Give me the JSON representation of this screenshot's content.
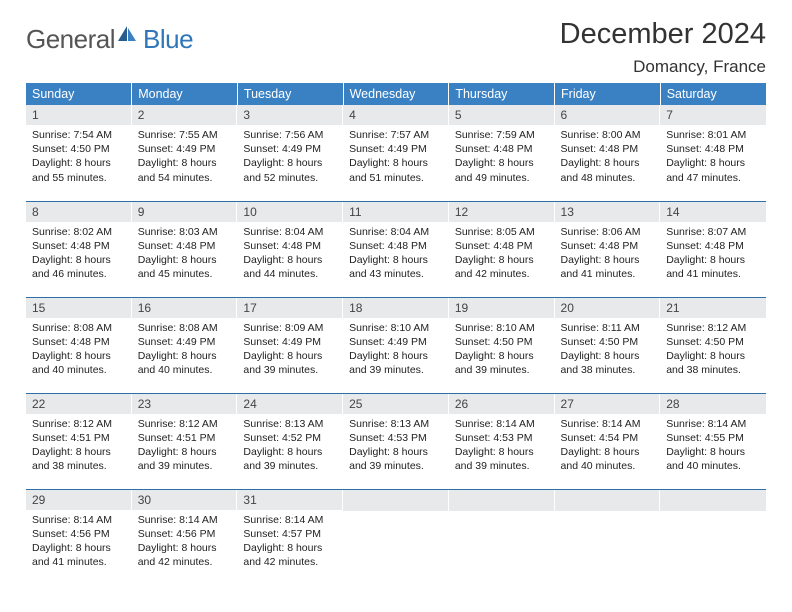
{
  "logo": {
    "text_general": "General",
    "text_blue": "Blue",
    "icon_color": "#2f77b8"
  },
  "header": {
    "title": "December 2024",
    "location": "Domancy, France"
  },
  "colors": {
    "header_bg": "#3a81c4",
    "header_text": "#ffffff",
    "daynum_bg": "#e7e9eb",
    "row_divider": "#2f6fa8",
    "body_text": "#222222"
  },
  "typography": {
    "title_size": 29,
    "subtitle_size": 17,
    "th_size": 12.5,
    "daynum_size": 12,
    "body_size": 10.5
  },
  "weekdays": [
    "Sunday",
    "Monday",
    "Tuesday",
    "Wednesday",
    "Thursday",
    "Friday",
    "Saturday"
  ],
  "weeks": [
    [
      {
        "n": "1",
        "sunrise": "7:54 AM",
        "sunset": "4:50 PM",
        "dl": "8 hours and 55 minutes."
      },
      {
        "n": "2",
        "sunrise": "7:55 AM",
        "sunset": "4:49 PM",
        "dl": "8 hours and 54 minutes."
      },
      {
        "n": "3",
        "sunrise": "7:56 AM",
        "sunset": "4:49 PM",
        "dl": "8 hours and 52 minutes."
      },
      {
        "n": "4",
        "sunrise": "7:57 AM",
        "sunset": "4:49 PM",
        "dl": "8 hours and 51 minutes."
      },
      {
        "n": "5",
        "sunrise": "7:59 AM",
        "sunset": "4:48 PM",
        "dl": "8 hours and 49 minutes."
      },
      {
        "n": "6",
        "sunrise": "8:00 AM",
        "sunset": "4:48 PM",
        "dl": "8 hours and 48 minutes."
      },
      {
        "n": "7",
        "sunrise": "8:01 AM",
        "sunset": "4:48 PM",
        "dl": "8 hours and 47 minutes."
      }
    ],
    [
      {
        "n": "8",
        "sunrise": "8:02 AM",
        "sunset": "4:48 PM",
        "dl": "8 hours and 46 minutes."
      },
      {
        "n": "9",
        "sunrise": "8:03 AM",
        "sunset": "4:48 PM",
        "dl": "8 hours and 45 minutes."
      },
      {
        "n": "10",
        "sunrise": "8:04 AM",
        "sunset": "4:48 PM",
        "dl": "8 hours and 44 minutes."
      },
      {
        "n": "11",
        "sunrise": "8:04 AM",
        "sunset": "4:48 PM",
        "dl": "8 hours and 43 minutes."
      },
      {
        "n": "12",
        "sunrise": "8:05 AM",
        "sunset": "4:48 PM",
        "dl": "8 hours and 42 minutes."
      },
      {
        "n": "13",
        "sunrise": "8:06 AM",
        "sunset": "4:48 PM",
        "dl": "8 hours and 41 minutes."
      },
      {
        "n": "14",
        "sunrise": "8:07 AM",
        "sunset": "4:48 PM",
        "dl": "8 hours and 41 minutes."
      }
    ],
    [
      {
        "n": "15",
        "sunrise": "8:08 AM",
        "sunset": "4:48 PM",
        "dl": "8 hours and 40 minutes."
      },
      {
        "n": "16",
        "sunrise": "8:08 AM",
        "sunset": "4:49 PM",
        "dl": "8 hours and 40 minutes."
      },
      {
        "n": "17",
        "sunrise": "8:09 AM",
        "sunset": "4:49 PM",
        "dl": "8 hours and 39 minutes."
      },
      {
        "n": "18",
        "sunrise": "8:10 AM",
        "sunset": "4:49 PM",
        "dl": "8 hours and 39 minutes."
      },
      {
        "n": "19",
        "sunrise": "8:10 AM",
        "sunset": "4:50 PM",
        "dl": "8 hours and 39 minutes."
      },
      {
        "n": "20",
        "sunrise": "8:11 AM",
        "sunset": "4:50 PM",
        "dl": "8 hours and 38 minutes."
      },
      {
        "n": "21",
        "sunrise": "8:12 AM",
        "sunset": "4:50 PM",
        "dl": "8 hours and 38 minutes."
      }
    ],
    [
      {
        "n": "22",
        "sunrise": "8:12 AM",
        "sunset": "4:51 PM",
        "dl": "8 hours and 38 minutes."
      },
      {
        "n": "23",
        "sunrise": "8:12 AM",
        "sunset": "4:51 PM",
        "dl": "8 hours and 39 minutes."
      },
      {
        "n": "24",
        "sunrise": "8:13 AM",
        "sunset": "4:52 PM",
        "dl": "8 hours and 39 minutes."
      },
      {
        "n": "25",
        "sunrise": "8:13 AM",
        "sunset": "4:53 PM",
        "dl": "8 hours and 39 minutes."
      },
      {
        "n": "26",
        "sunrise": "8:14 AM",
        "sunset": "4:53 PM",
        "dl": "8 hours and 39 minutes."
      },
      {
        "n": "27",
        "sunrise": "8:14 AM",
        "sunset": "4:54 PM",
        "dl": "8 hours and 40 minutes."
      },
      {
        "n": "28",
        "sunrise": "8:14 AM",
        "sunset": "4:55 PM",
        "dl": "8 hours and 40 minutes."
      }
    ],
    [
      {
        "n": "29",
        "sunrise": "8:14 AM",
        "sunset": "4:56 PM",
        "dl": "8 hours and 41 minutes."
      },
      {
        "n": "30",
        "sunrise": "8:14 AM",
        "sunset": "4:56 PM",
        "dl": "8 hours and 42 minutes."
      },
      {
        "n": "31",
        "sunrise": "8:14 AM",
        "sunset": "4:57 PM",
        "dl": "8 hours and 42 minutes."
      },
      null,
      null,
      null,
      null
    ]
  ],
  "labels": {
    "sunrise": "Sunrise:",
    "sunset": "Sunset:",
    "daylight": "Daylight:"
  }
}
